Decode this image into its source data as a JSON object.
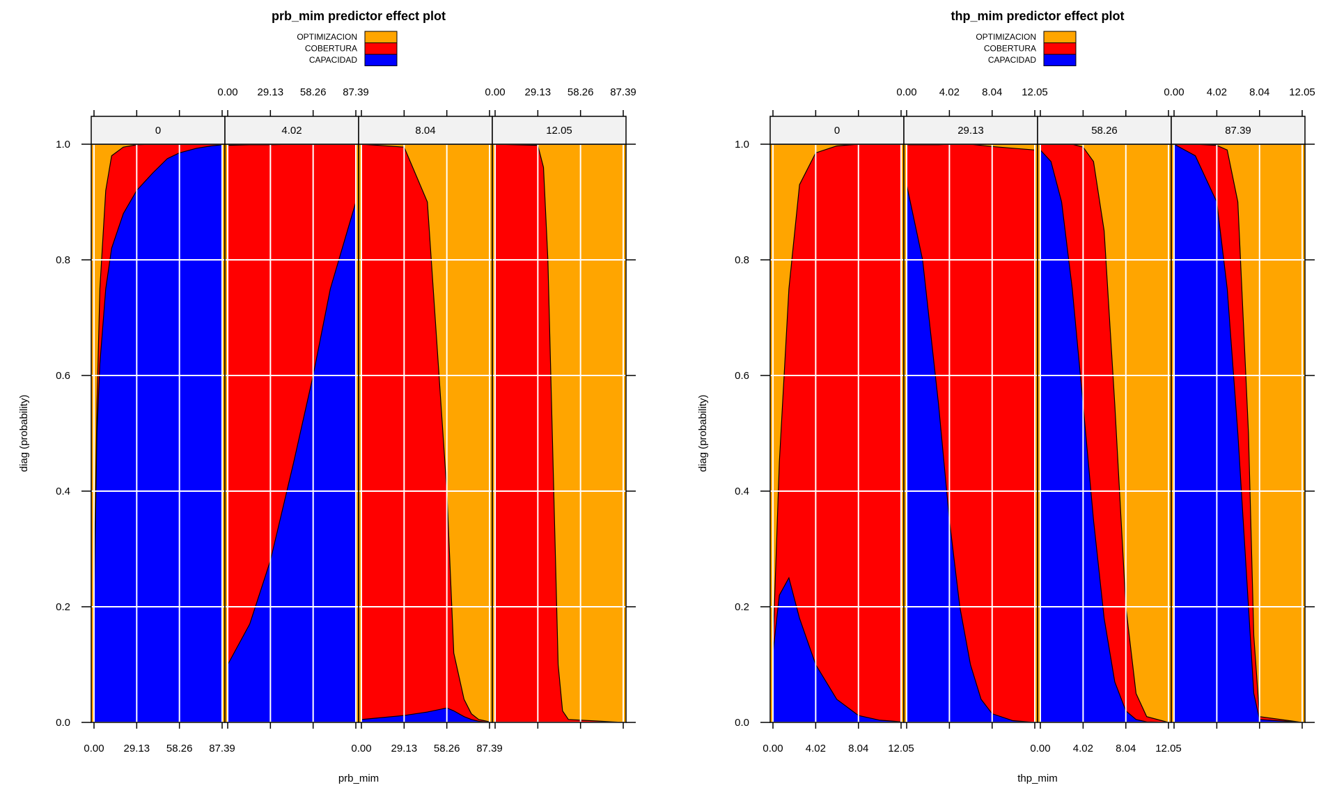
{
  "colors": {
    "OPTIMIZACION": "#FFA500",
    "COBERTURA": "#FF0000",
    "CAPACIDAD": "#0000FF",
    "strip_bg": "#F2F2F2",
    "grid": "#FFFFFF"
  },
  "chart_data": [
    {
      "type": "area",
      "title": "prb_mim predictor effect plot",
      "xlabel": "prb_mim",
      "ylabel": "diag (probability)",
      "ylim": [
        0,
        1
      ],
      "y_ticks": [
        "0.0",
        "0.2",
        "0.4",
        "0.6",
        "0.8",
        "1.0"
      ],
      "x_range": [
        0,
        87.39
      ],
      "x_ticks": [
        0,
        29.13,
        58.26,
        87.39
      ],
      "x_tick_labels": [
        "0.00",
        "29.13",
        "58.26",
        "87.39"
      ],
      "legend": [
        "OPTIMIZACION",
        "COBERTURA",
        "CAPACIDAD"
      ],
      "legend_position": "top",
      "stacking_order": [
        "CAPACIDAD",
        "COBERTURA",
        "OPTIMIZACION"
      ],
      "panels": [
        {
          "strip": "0",
          "x": [
            0,
            2,
            4,
            8,
            12,
            20,
            29.13,
            40,
            50,
            58.26,
            70,
            80,
            87.39
          ],
          "CAPACIDAD": [
            0.2,
            0.5,
            0.62,
            0.75,
            0.82,
            0.88,
            0.92,
            0.95,
            0.975,
            0.985,
            0.993,
            0.997,
            0.999
          ],
          "COBERTURA_cum": [
            0.2,
            0.55,
            0.75,
            0.92,
            0.98,
            0.995,
            0.999,
            1,
            1,
            1,
            1,
            1,
            1
          ]
        },
        {
          "strip": "4.02",
          "x": [
            0,
            15,
            29.13,
            45,
            58.26,
            70,
            87.39
          ],
          "CAPACIDAD": [
            0.1,
            0.17,
            0.28,
            0.45,
            0.6,
            0.75,
            0.9
          ],
          "COBERTURA_cum": [
            0.998,
            0.999,
            0.999,
            1,
            1,
            1,
            1
          ]
        },
        {
          "strip": "8.04",
          "x": [
            0,
            29.13,
            45,
            58.26,
            63,
            70,
            75,
            80,
            87.39
          ],
          "CAPACIDAD": [
            0.005,
            0.012,
            0.018,
            0.025,
            0.02,
            0.01,
            0.005,
            0.002,
            0
          ],
          "COBERTURA_cum": [
            1,
            0.995,
            0.9,
            0.4,
            0.12,
            0.04,
            0.015,
            0.005,
            0.001
          ]
        },
        {
          "strip": "12.05",
          "x": [
            0,
            29.13,
            33,
            36,
            40,
            43,
            46,
            50,
            87.39
          ],
          "CAPACIDAD": [
            0,
            0,
            0,
            0,
            0,
            0,
            0,
            0,
            0
          ],
          "COBERTURA_cum": [
            1,
            0.998,
            0.96,
            0.8,
            0.4,
            0.1,
            0.02,
            0.005,
            0
          ]
        }
      ]
    },
    {
      "type": "area",
      "title": "thp_mim predictor effect plot",
      "xlabel": "thp_mim",
      "ylabel": "diag (probability)",
      "ylim": [
        0,
        1
      ],
      "y_ticks": [
        "0.0",
        "0.2",
        "0.4",
        "0.6",
        "0.8",
        "1.0"
      ],
      "x_range": [
        0,
        12.05
      ],
      "x_ticks": [
        0,
        4.02,
        8.04,
        12.05
      ],
      "x_tick_labels": [
        "0.00",
        "4.02",
        "8.04",
        "12.05"
      ],
      "legend": [
        "OPTIMIZACION",
        "COBERTURA",
        "CAPACIDAD"
      ],
      "legend_position": "top",
      "stacking_order": [
        "CAPACIDAD",
        "COBERTURA",
        "OPTIMIZACION"
      ],
      "panels": [
        {
          "strip": "0",
          "x": [
            0,
            0.6,
            1.5,
            2.5,
            4.02,
            6,
            8.04,
            10,
            12.05
          ],
          "CAPACIDAD": [
            0.12,
            0.22,
            0.25,
            0.18,
            0.1,
            0.04,
            0.012,
            0.004,
            0.001
          ],
          "COBERTURA_cum": [
            0.13,
            0.45,
            0.75,
            0.93,
            0.985,
            0.997,
            1,
            1,
            1
          ]
        },
        {
          "strip": "29.13",
          "x": [
            0,
            1.5,
            3,
            4.02,
            5,
            6,
            7,
            8.04,
            10,
            12.05
          ],
          "CAPACIDAD": [
            0.93,
            0.8,
            0.55,
            0.35,
            0.2,
            0.1,
            0.04,
            0.015,
            0.003,
            0
          ],
          "COBERTURA_cum": [
            0.999,
            0.999,
            0.999,
            1,
            1,
            1,
            0.998,
            0.996,
            0.993,
            0.99
          ]
        },
        {
          "strip": "58.26",
          "x": [
            0,
            1,
            2,
            3,
            4.02,
            5,
            6,
            7,
            8.04,
            9,
            10,
            12.05
          ],
          "CAPACIDAD": [
            0.99,
            0.97,
            0.9,
            0.75,
            0.55,
            0.35,
            0.18,
            0.07,
            0.02,
            0.005,
            0.001,
            0
          ],
          "COBERTURA_cum": [
            1,
            1,
            1,
            1,
            0.995,
            0.97,
            0.85,
            0.55,
            0.2,
            0.05,
            0.01,
            0
          ]
        },
        {
          "strip": "87.39",
          "x": [
            0,
            2,
            4.02,
            5,
            6,
            7,
            7.5,
            8.04,
            12.05
          ],
          "CAPACIDAD": [
            1,
            0.98,
            0.9,
            0.75,
            0.5,
            0.2,
            0.05,
            0.005,
            0
          ],
          "COBERTURA_cum": [
            1,
            1,
            0.998,
            0.99,
            0.9,
            0.5,
            0.15,
            0.01,
            0
          ]
        }
      ]
    }
  ]
}
